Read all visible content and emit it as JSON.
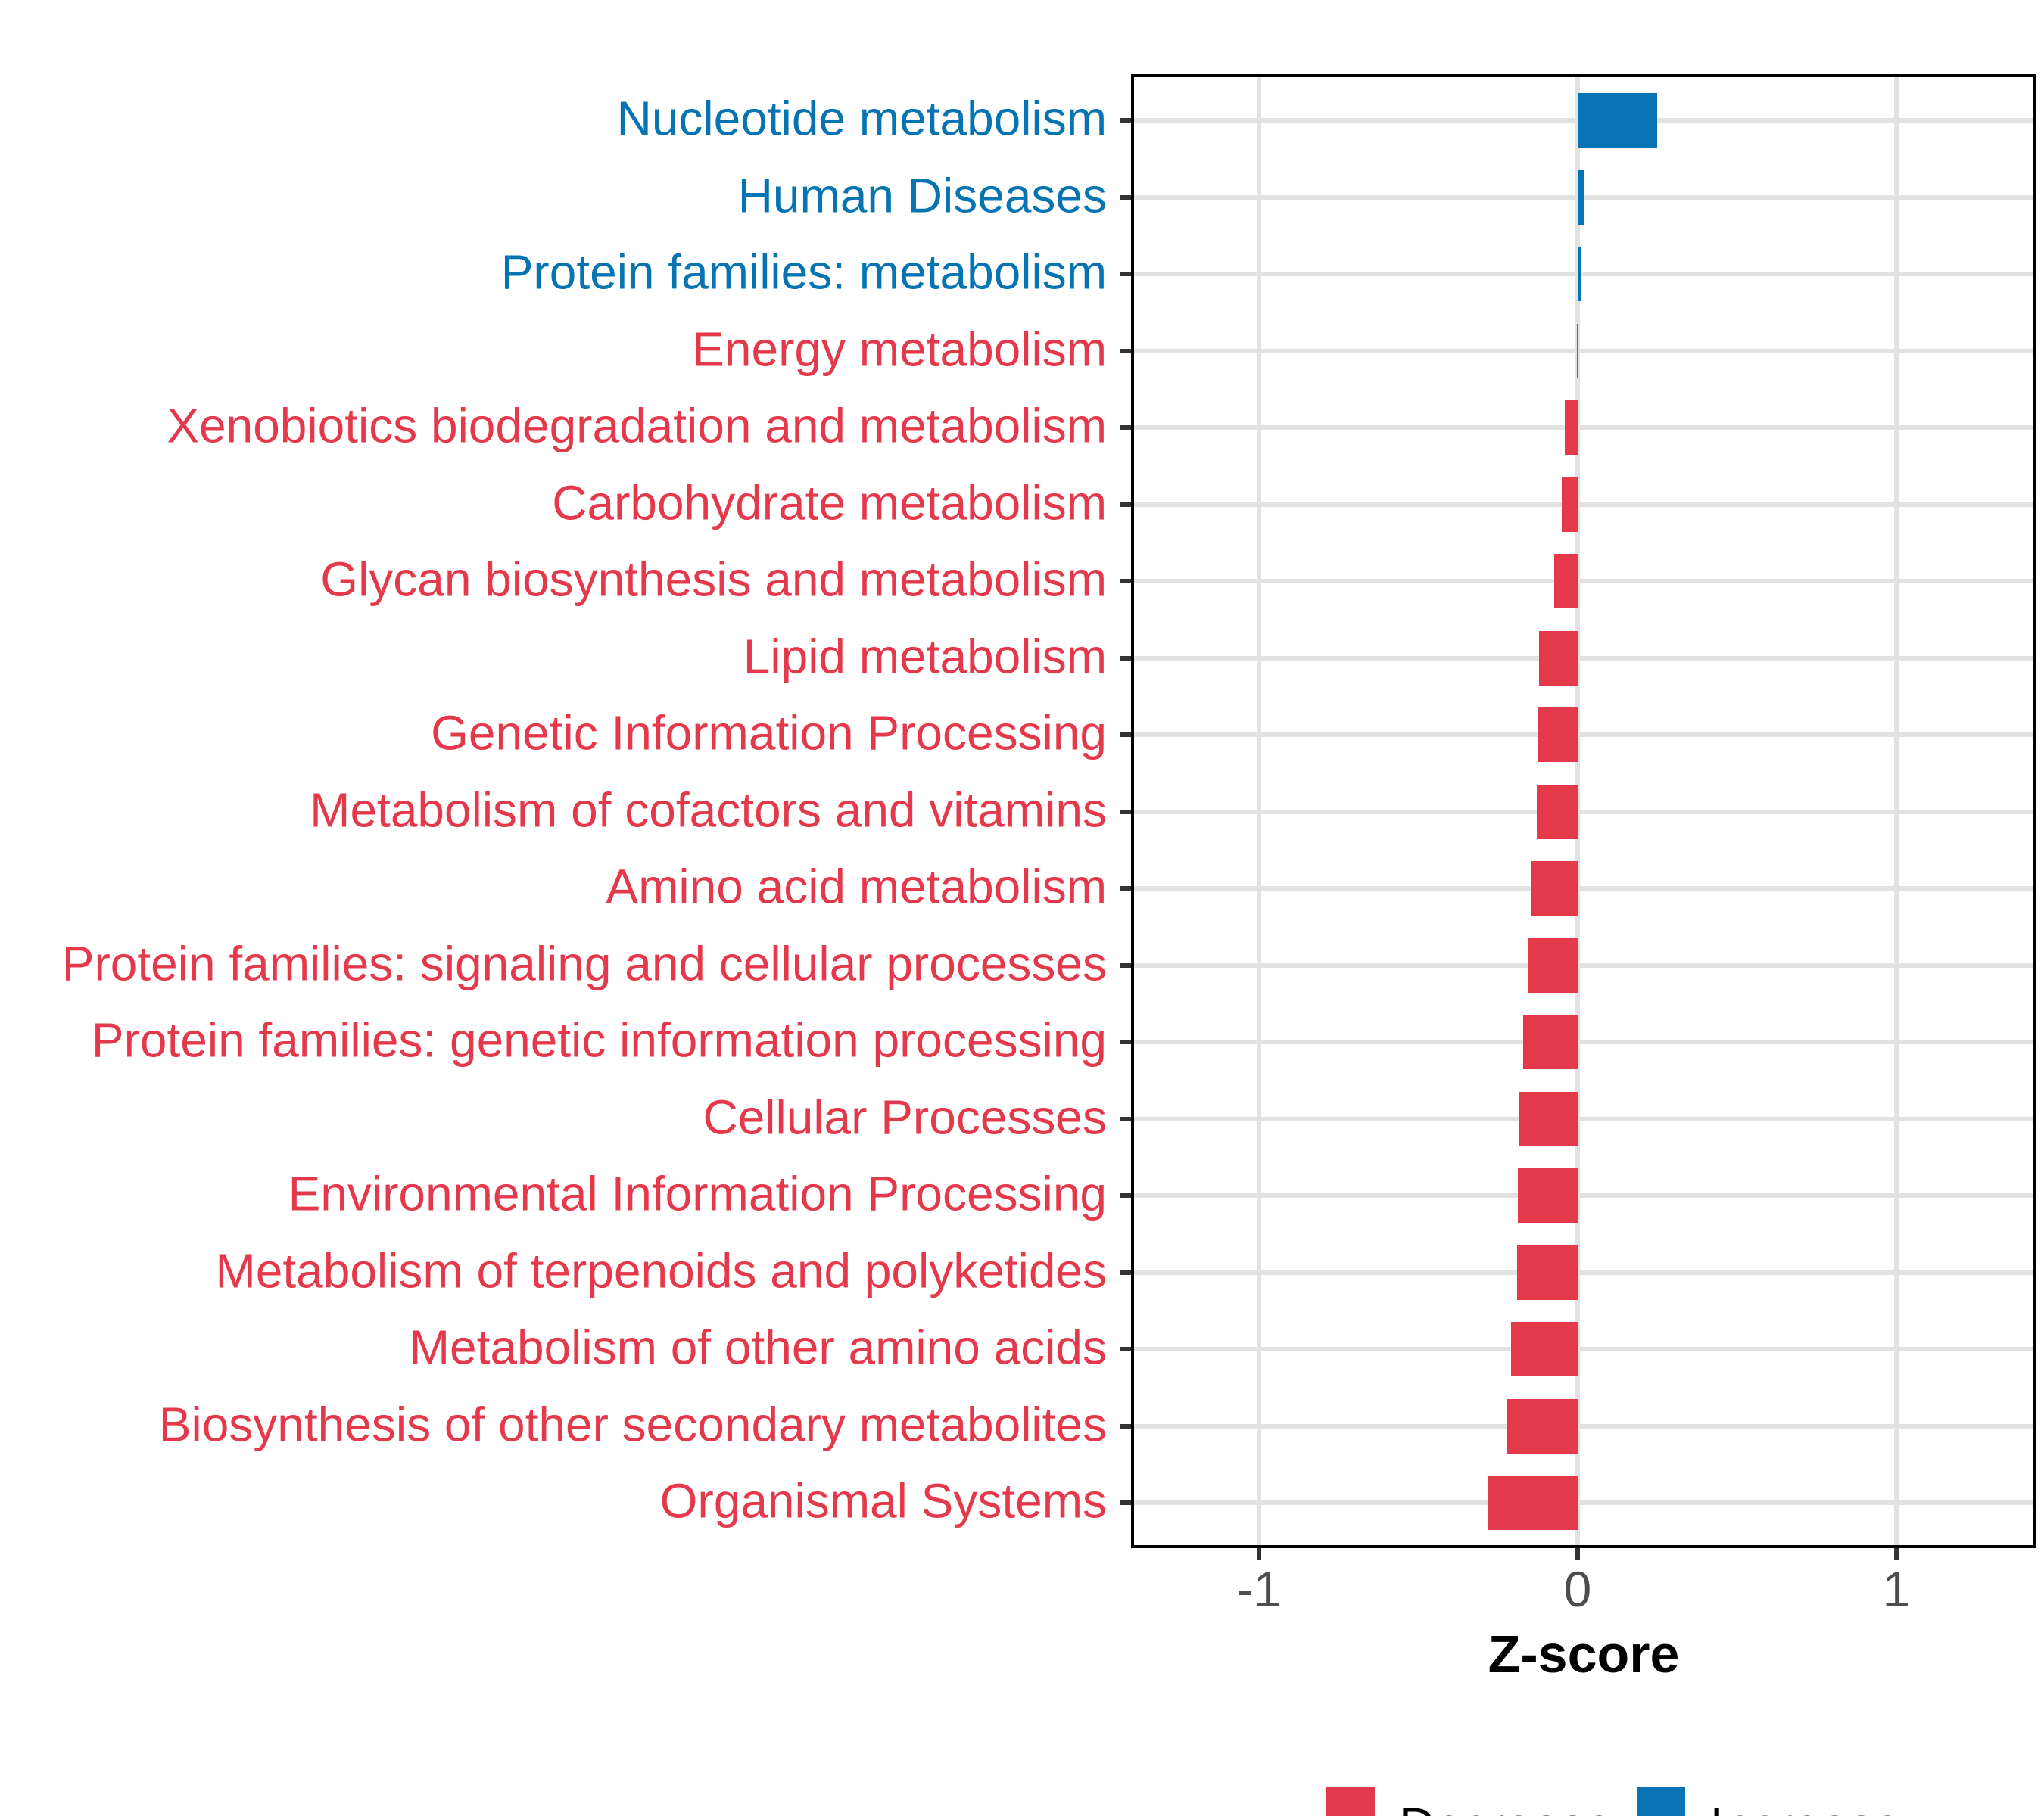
{
  "chart_data": {
    "type": "bar",
    "orientation": "horizontal",
    "title": "",
    "xlabel": "Z-score",
    "xlim": [
      -1.4,
      1.44
    ],
    "x_ticks": [
      "-1",
      "0",
      "1"
    ],
    "grid": true,
    "colors": {
      "decrease": "#E4384B",
      "increase": "#0674B2",
      "gridline": "#E2E2E2",
      "axis_text": "#4D4D4D",
      "panel_border": "#000000"
    },
    "legend": {
      "position": "bottom",
      "entries": [
        {
          "label": "Decrease",
          "color": "#E4384B",
          "direction": "decrease"
        },
        {
          "label": "Increase",
          "color": "#0674B2",
          "direction": "increase"
        }
      ]
    },
    "categories": [
      "Nucleotide metabolism",
      "Human Diseases",
      "Protein families: metabolism",
      "Energy metabolism",
      "Xenobiotics biodegradation and metabolism",
      "Carbohydrate metabolism",
      "Glycan biosynthesis and metabolism",
      "Lipid metabolism",
      "Genetic Information Processing",
      "Metabolism of cofactors and vitamins",
      "Amino acid metabolism",
      "Protein families: signaling and cellular processes",
      "Protein families: genetic information processing",
      "Cellular Processes",
      "Environmental Information Processing",
      "Metabolism of terpenoids and polyketides",
      "Metabolism of other amino acids",
      "Biosynthesis of other secondary metabolites",
      "Organismal Systems"
    ],
    "values": [
      0.25,
      0.018,
      0.012,
      -0.003,
      -0.041,
      -0.051,
      -0.074,
      -0.122,
      -0.123,
      -0.128,
      -0.147,
      -0.154,
      -0.17,
      -0.185,
      -0.187,
      -0.19,
      -0.208,
      -0.224,
      -0.283
    ],
    "directions": [
      "increase",
      "increase",
      "increase",
      "decrease",
      "decrease",
      "decrease",
      "decrease",
      "decrease",
      "decrease",
      "decrease",
      "decrease",
      "decrease",
      "decrease",
      "decrease",
      "decrease",
      "decrease",
      "decrease",
      "decrease",
      "decrease"
    ]
  }
}
